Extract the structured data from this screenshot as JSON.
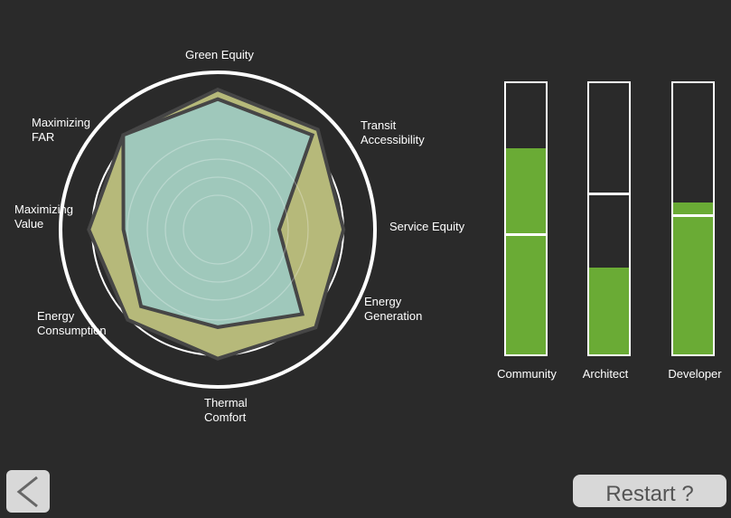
{
  "radar": {
    "axes": [
      {
        "label": "Green Equity"
      },
      {
        "label": "Transit\nAccessibility"
      },
      {
        "label": "Service Equity"
      },
      {
        "label": "Energy\nGeneration"
      },
      {
        "label": "Thermal\nComfort"
      },
      {
        "label": "Energy\nConsumption"
      },
      {
        "label": "Maximizing\nValue"
      },
      {
        "label": "Maximizing\nFAR"
      }
    ],
    "outer_series": {
      "values": [
        0.89,
        0.9,
        0.8,
        0.88,
        0.82,
        0.81,
        0.82,
        0.85
      ],
      "color": "#b6b97a"
    },
    "inner_series": {
      "values": [
        0.83,
        0.85,
        0.39,
        0.76,
        0.62,
        0.69,
        0.6,
        0.85
      ],
      "color": "#9fc8bb"
    }
  },
  "bars": [
    {
      "label": "Community",
      "fill_level": 0.76,
      "marker_level": 0.44,
      "fill_color": "#6aab35"
    },
    {
      "label": "Architect",
      "fill_level": 0.32,
      "marker_level": 0.59,
      "fill_color": "#6aab35"
    },
    {
      "label": "Developer",
      "fill_level": 0.56,
      "marker_level": 0.51,
      "fill_color": "#6aab35"
    }
  ],
  "controls": {
    "back_icon": "chevron-left-icon",
    "restart_label": "Restart ?"
  },
  "colors": {
    "background": "#2a2a2a",
    "polygon_stroke": "#464646"
  }
}
